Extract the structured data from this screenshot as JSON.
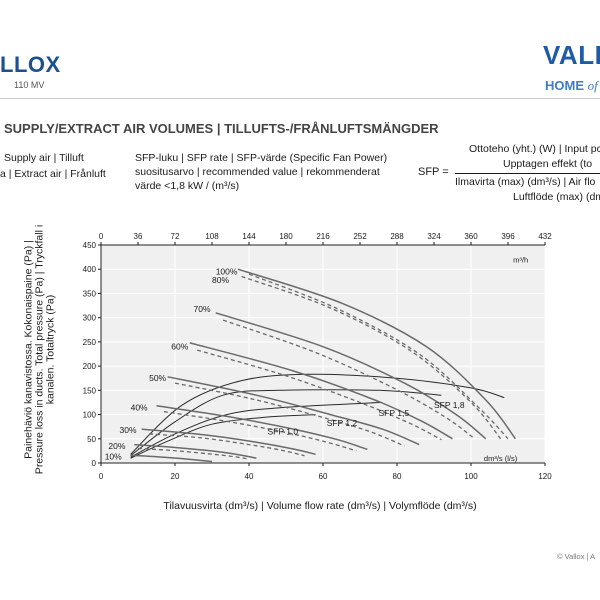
{
  "header": {
    "brand_left": "LLOX",
    "model": "110 MV",
    "brand_right": "VALL",
    "home": "HOME",
    "of": "of"
  },
  "section_title": "SUPPLY/EXTRACT AIR VOLUMES | TILLUFTS-/FRÅNLUFTSMÄNGDER",
  "legend": {
    "supply": "Supply air | Tilluft",
    "extract": "a | Extract air | Frånluft",
    "sfp_lines": [
      "SFP-luku | SFP rate | SFP-värde (Specific Fan Power)",
      "suositusarvo | recommended value | rekommenderat",
      "värde <1,8 kW / (m³/s)"
    ]
  },
  "formula": {
    "label": "SFP =",
    "numerator": [
      "Ottoteho (yht.) (W) | Input pc",
      "Upptagen effekt (to"
    ],
    "denominator": [
      "Ilmavirta (max) (dm³/s) | Air flo",
      "Luftflöde (max) (dm"
    ]
  },
  "axis_titles": {
    "y": "Painehäviö kanavistossa. Kokonaispaine (Pa) | Pressure loss in ducts. Total pressure (Pa) | Tryckfall i kanalen. Totaltryck (Pa)",
    "x": "Tilavuusvirta (dm³/s) | Volume flow rate (dm³/s) | Volymflöde (dm³/s)"
  },
  "footer": {
    "copyright": "© Vallox | A"
  },
  "chart_data": {
    "type": "line",
    "x_bottom": {
      "unit_label": "dm³/s (l/s)",
      "ticks": [
        0,
        20,
        40,
        60,
        80,
        100,
        120
      ],
      "range": [
        0,
        120
      ]
    },
    "x_top": {
      "unit_label": "m³/h",
      "ticks": [
        0,
        36,
        72,
        108,
        144,
        180,
        216,
        252,
        288,
        324,
        360,
        396,
        432
      ],
      "range": [
        0,
        432
      ]
    },
    "y": {
      "ticks": [
        0,
        50,
        100,
        150,
        200,
        250,
        300,
        350,
        400,
        450
      ],
      "range": [
        0,
        450
      ]
    },
    "grid": "on",
    "series_supply": [
      {
        "name": "100%",
        "points": [
          [
            37,
            400
          ],
          [
            65,
            330
          ],
          [
            88,
            240
          ],
          [
            104,
            130
          ],
          [
            112,
            50
          ]
        ]
      },
      {
        "name": "70%",
        "points": [
          [
            31,
            310
          ],
          [
            60,
            240
          ],
          [
            82,
            165
          ],
          [
            96,
            100
          ],
          [
            104,
            50
          ]
        ]
      },
      {
        "name": "60%",
        "points": [
          [
            24,
            248
          ],
          [
            52,
            190
          ],
          [
            74,
            130
          ],
          [
            87,
            85
          ],
          [
            95,
            50
          ]
        ]
      },
      {
        "name": "50%",
        "points": [
          [
            18,
            178
          ],
          [
            42,
            140
          ],
          [
            62,
            100
          ],
          [
            76,
            70
          ],
          [
            86,
            38
          ]
        ]
      },
      {
        "name": "40%",
        "points": [
          [
            15,
            118
          ],
          [
            35,
            95
          ],
          [
            52,
            70
          ],
          [
            64,
            48
          ],
          [
            72,
            28
          ]
        ]
      },
      {
        "name": "30%",
        "points": [
          [
            11,
            70
          ],
          [
            28,
            58
          ],
          [
            42,
            43
          ],
          [
            52,
            29
          ],
          [
            58,
            18
          ]
        ]
      },
      {
        "name": "20%",
        "points": [
          [
            9,
            38
          ],
          [
            20,
            32
          ],
          [
            31,
            24
          ],
          [
            38,
            16
          ],
          [
            42,
            10
          ]
        ]
      },
      {
        "name": "10%",
        "points": [
          [
            8,
            16
          ],
          [
            15,
            13
          ],
          [
            22,
            9
          ],
          [
            26,
            6
          ],
          [
            30,
            3
          ]
        ]
      }
    ],
    "series_extract": [
      {
        "name": "80%",
        "points": [
          [
            38,
            385
          ],
          [
            62,
            320
          ],
          [
            84,
            230
          ],
          [
            100,
            125
          ],
          [
            108,
            50
          ]
        ]
      },
      {
        "name": "100%",
        "points": [
          [
            40,
            390
          ],
          [
            64,
            318
          ],
          [
            86,
            225
          ],
          [
            102,
            115
          ],
          [
            110,
            50
          ]
        ]
      },
      {
        "name": "70%",
        "points": [
          [
            33,
            295
          ],
          [
            58,
            228
          ],
          [
            79,
            155
          ],
          [
            93,
            95
          ],
          [
            101,
            50
          ]
        ]
      },
      {
        "name": "60%",
        "points": [
          [
            26,
            233
          ],
          [
            50,
            180
          ],
          [
            71,
            122
          ],
          [
            84,
            80
          ],
          [
            92,
            48
          ]
        ]
      },
      {
        "name": "50%",
        "points": [
          [
            20,
            165
          ],
          [
            41,
            132
          ],
          [
            60,
            94
          ],
          [
            73,
            64
          ],
          [
            82,
            35
          ]
        ]
      },
      {
        "name": "40%",
        "points": [
          [
            17,
            106
          ],
          [
            34,
            86
          ],
          [
            50,
            63
          ],
          [
            61,
            43
          ],
          [
            69,
            25
          ]
        ]
      },
      {
        "name": "30%",
        "points": [
          [
            13,
            60
          ],
          [
            27,
            52
          ],
          [
            40,
            38
          ],
          [
            49,
            26
          ],
          [
            55,
            15
          ]
        ]
      },
      {
        "name": "20%",
        "points": [
          [
            10,
            30
          ],
          [
            19,
            26
          ],
          [
            29,
            19
          ],
          [
            36,
            13
          ],
          [
            40,
            8
          ]
        ]
      }
    ],
    "sfp_curves": [
      {
        "name": "SFP 1,0",
        "points": [
          [
            8,
            10
          ],
          [
            18,
            45
          ],
          [
            30,
            80
          ],
          [
            45,
            95
          ],
          [
            58,
            100
          ]
        ]
      },
      {
        "name": "SFP 1,2",
        "points": [
          [
            8,
            12
          ],
          [
            20,
            60
          ],
          [
            34,
            100
          ],
          [
            50,
            115
          ],
          [
            76,
            125
          ]
        ]
      },
      {
        "name": "SFP 1,5",
        "points": [
          [
            8,
            15
          ],
          [
            20,
            85
          ],
          [
            33,
            140
          ],
          [
            48,
            150
          ],
          [
            75,
            150
          ],
          [
            92,
            140
          ]
        ]
      },
      {
        "name": "SFP 1,8",
        "points": [
          [
            8,
            18
          ],
          [
            22,
            120
          ],
          [
            38,
            170
          ],
          [
            56,
            183
          ],
          [
            80,
            175
          ],
          [
            100,
            155
          ],
          [
            109,
            135
          ]
        ]
      }
    ],
    "curve_labels": [
      {
        "text": "100%",
        "x": 31,
        "y": 395
      },
      {
        "text": "80%",
        "x": 30,
        "y": 378
      },
      {
        "text": "70%",
        "x": 25,
        "y": 318
      },
      {
        "text": "60%",
        "x": 19,
        "y": 240
      },
      {
        "text": "50%",
        "x": 13,
        "y": 175
      },
      {
        "text": "40%",
        "x": 8,
        "y": 115
      },
      {
        "text": "30%",
        "x": 5,
        "y": 68
      },
      {
        "text": "20%",
        "x": 2,
        "y": 35
      },
      {
        "text": "10%",
        "x": 1,
        "y": 13
      },
      {
        "text": "SFP 1,0",
        "x": 45,
        "y": 65
      },
      {
        "text": "SFP 1,2",
        "x": 61,
        "y": 83
      },
      {
        "text": "SFP 1,5",
        "x": 75,
        "y": 103
      },
      {
        "text": "SFP 1,8",
        "x": 90,
        "y": 120
      }
    ]
  }
}
